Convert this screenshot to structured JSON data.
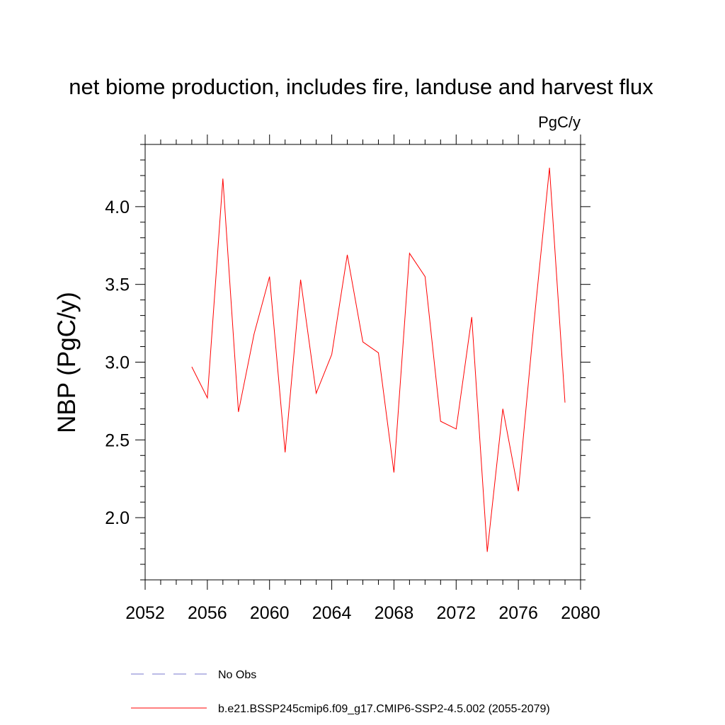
{
  "chart_data": {
    "type": "line",
    "title": "net biome production, includes fire, landuse and harvest flux",
    "units": "PgC/y",
    "xlabel": "",
    "ylabel": "NBP  (PgC/y)",
    "xlim": [
      2052,
      2080
    ],
    "ylim": [
      1.6,
      4.4
    ],
    "x_ticks": [
      2052,
      2056,
      2060,
      2064,
      2068,
      2072,
      2076,
      2080
    ],
    "x_tick_labels": [
      "2052",
      "2056",
      "2060",
      "2064",
      "2068",
      "2072",
      "2076",
      "2080"
    ],
    "y_ticks": [
      2.0,
      2.5,
      3.0,
      3.5,
      4.0
    ],
    "y_tick_labels": [
      "2.0",
      "2.5",
      "3.0",
      "3.5",
      "4.0"
    ],
    "grid": false,
    "series": [
      {
        "name": "b.e21.BSSP245cmip6.f09_g17.CMIP6-SSP2-4.5.002 (2055-2079)",
        "color": "#ff0000",
        "dash": "solid",
        "x": [
          2055,
          2056,
          2057,
          2058,
          2059,
          2060,
          2061,
          2062,
          2063,
          2064,
          2065,
          2066,
          2067,
          2068,
          2069,
          2070,
          2071,
          2072,
          2073,
          2074,
          2075,
          2076,
          2077,
          2078,
          2079
        ],
        "y": [
          2.97,
          2.77,
          4.18,
          2.68,
          3.18,
          3.55,
          2.42,
          3.53,
          2.8,
          3.05,
          3.69,
          3.13,
          3.06,
          2.29,
          3.7,
          3.55,
          2.62,
          2.57,
          3.29,
          1.78,
          2.7,
          2.17,
          3.25,
          4.25,
          2.74
        ]
      }
    ],
    "legend": [
      {
        "label": "No Obs",
        "color": "#7777cc",
        "dash": "dashed"
      },
      {
        "label": "b.e21.BSSP245cmip6.f09_g17.CMIP6-SSP2-4.5.002 (2055-2079)",
        "color": "#ff0000",
        "dash": "solid"
      }
    ]
  }
}
